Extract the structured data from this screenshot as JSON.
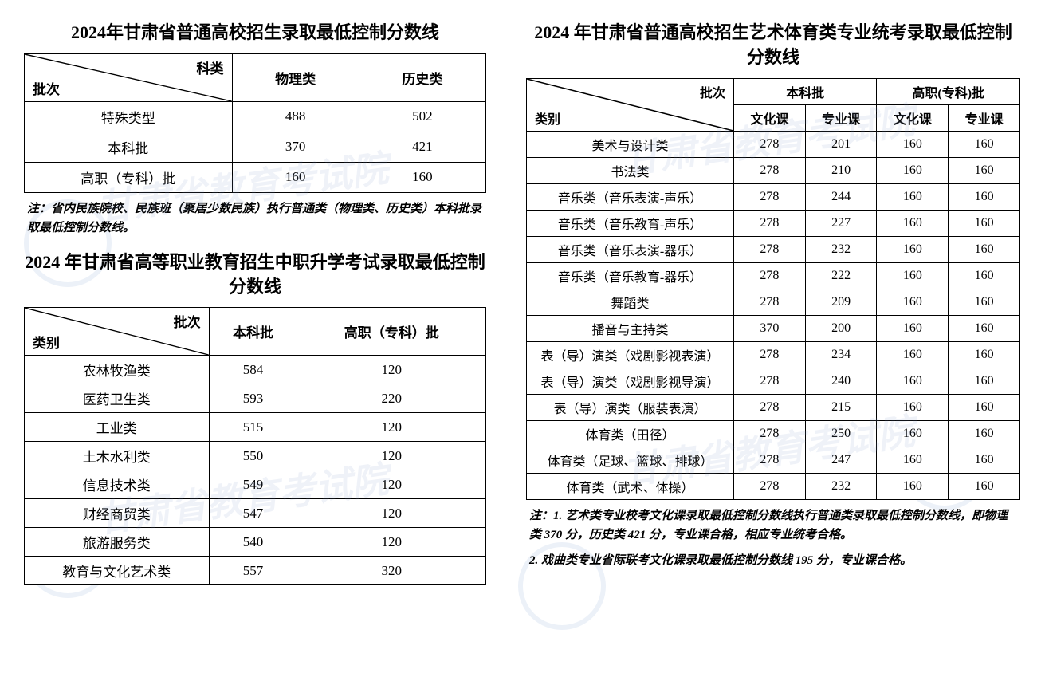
{
  "watermark_text": "甘肃省教育考试院",
  "watermark_color": "rgba(120,150,200,0.12)",
  "seal_color": "rgba(100,140,200,0.12)",
  "table_border_color": "#000000",
  "background_color": "#ffffff",
  "table1": {
    "title": "2024年甘肃省普通高校招生录取最低控制分数线",
    "diag_top": "科类",
    "diag_bottom": "批次",
    "cols": [
      "物理类",
      "历史类"
    ],
    "rows": [
      {
        "label": "特殊类型",
        "v": [
          "488",
          "502"
        ]
      },
      {
        "label": "本科批",
        "v": [
          "370",
          "421"
        ]
      },
      {
        "label": "高职（专科）批",
        "v": [
          "160",
          "160"
        ]
      }
    ],
    "note": "注：省内民族院校、民族班（聚居少数民族）执行普通类（物理类、历史类）本科批录取最低控制分数线。"
  },
  "table2": {
    "title": "2024 年甘肃省高等职业教育招生中职升学考试录取最低控制分数线",
    "diag_top": "批次",
    "diag_bottom": "类别",
    "cols": [
      "本科批",
      "高职（专科）批"
    ],
    "rows": [
      {
        "label": "农林牧渔类",
        "v": [
          "584",
          "120"
        ]
      },
      {
        "label": "医药卫生类",
        "v": [
          "593",
          "220"
        ]
      },
      {
        "label": "工业类",
        "v": [
          "515",
          "120"
        ]
      },
      {
        "label": "土木水利类",
        "v": [
          "550",
          "120"
        ]
      },
      {
        "label": "信息技术类",
        "v": [
          "549",
          "120"
        ]
      },
      {
        "label": "财经商贸类",
        "v": [
          "547",
          "120"
        ]
      },
      {
        "label": "旅游服务类",
        "v": [
          "540",
          "120"
        ]
      },
      {
        "label": "教育与文化艺术类",
        "v": [
          "557",
          "320"
        ]
      }
    ]
  },
  "table3": {
    "title": "2024 年甘肃省普通高校招生艺术体育类专业统考录取最低控制分数线",
    "diag_top": "批次",
    "diag_bottom": "类别",
    "group_cols": [
      "本科批",
      "高职(专科)批"
    ],
    "sub_cols": [
      "文化课",
      "专业课",
      "文化课",
      "专业课"
    ],
    "rows": [
      {
        "label": "美术与设计类",
        "v": [
          "278",
          "201",
          "160",
          "160"
        ]
      },
      {
        "label": "书法类",
        "v": [
          "278",
          "210",
          "160",
          "160"
        ]
      },
      {
        "label": "音乐类（音乐表演-声乐）",
        "v": [
          "278",
          "244",
          "160",
          "160"
        ]
      },
      {
        "label": "音乐类（音乐教育-声乐）",
        "v": [
          "278",
          "227",
          "160",
          "160"
        ]
      },
      {
        "label": "音乐类（音乐表演-器乐）",
        "v": [
          "278",
          "232",
          "160",
          "160"
        ]
      },
      {
        "label": "音乐类（音乐教育-器乐）",
        "v": [
          "278",
          "222",
          "160",
          "160"
        ]
      },
      {
        "label": "舞蹈类",
        "v": [
          "278",
          "209",
          "160",
          "160"
        ]
      },
      {
        "label": "播音与主持类",
        "v": [
          "370",
          "200",
          "160",
          "160"
        ]
      },
      {
        "label": "表（导）演类（戏剧影视表演）",
        "v": [
          "278",
          "234",
          "160",
          "160"
        ]
      },
      {
        "label": "表（导）演类（戏剧影视导演）",
        "v": [
          "278",
          "240",
          "160",
          "160"
        ]
      },
      {
        "label": "表（导）演类（服装表演）",
        "v": [
          "278",
          "215",
          "160",
          "160"
        ]
      },
      {
        "label": "体育类（田径）",
        "v": [
          "278",
          "250",
          "160",
          "160"
        ]
      },
      {
        "label": "体育类（足球、篮球、排球）",
        "v": [
          "278",
          "247",
          "160",
          "160"
        ]
      },
      {
        "label": "体育类（武术、体操）",
        "v": [
          "278",
          "232",
          "160",
          "160"
        ]
      }
    ],
    "note1": "注：1. 艺术类专业校考文化课录取最低控制分数线执行普通类录取最低控制分数线，即物理类 370 分，历史类 421 分，专业课合格，相应专业统考合格。",
    "note2": "2. 戏曲类专业省际联考文化课录取最低控制分数线 195 分，专业课合格。"
  }
}
